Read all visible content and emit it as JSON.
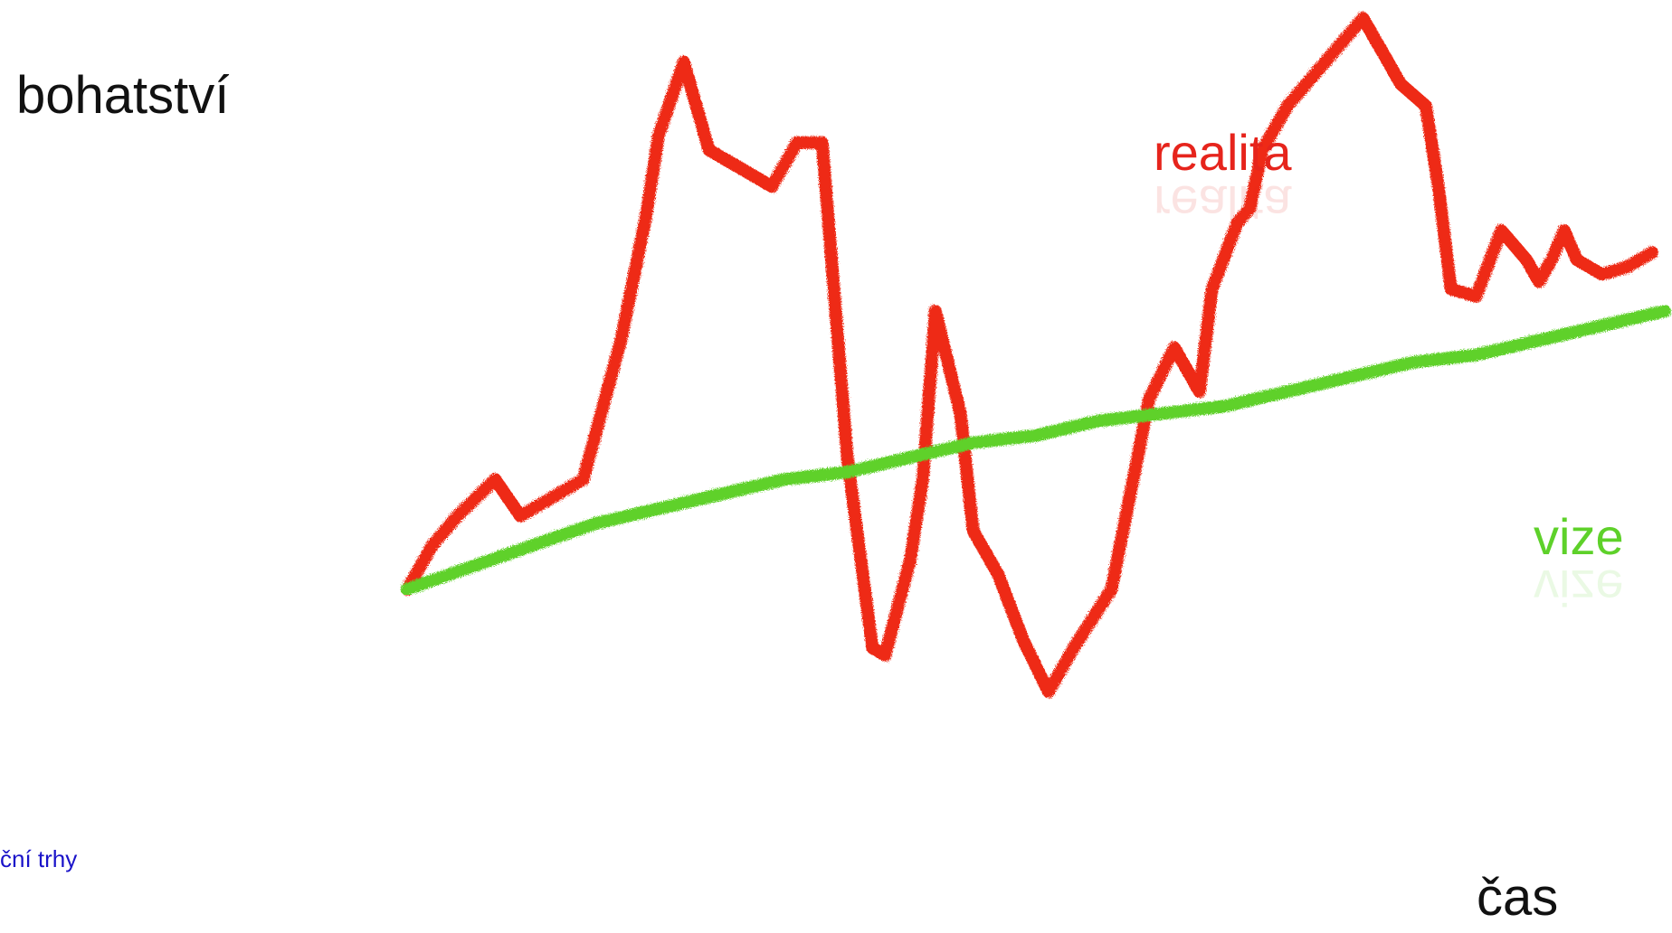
{
  "footer": {
    "link_text": "ční trhy"
  },
  "chart_data": {
    "type": "line",
    "ylabel": "bohatství",
    "xlabel": "čas",
    "x_ticks_visible": false,
    "y_ticks_visible": false,
    "grid": false,
    "xlim": [
      0,
      100
    ],
    "ylim": [
      0,
      100
    ],
    "series": [
      {
        "name": "realita",
        "color": "#ee2a18",
        "x": [
          0,
          2,
          4,
          7,
          9,
          12,
          14,
          17,
          19,
          20,
          22,
          24,
          27,
          29,
          31,
          33,
          35,
          37,
          38,
          40,
          41,
          42,
          44,
          45,
          47,
          49,
          51,
          53,
          56,
          59,
          61,
          63,
          64,
          66,
          67,
          68,
          70,
          73,
          76,
          79,
          81,
          82,
          83,
          85,
          87,
          89,
          90,
          91,
          92,
          93,
          95,
          97,
          99
        ],
        "y": [
          22,
          28,
          32,
          37,
          32,
          35,
          37,
          56,
          73,
          84,
          94,
          82,
          79,
          77,
          83,
          83,
          40,
          14,
          13,
          26,
          37,
          60,
          46,
          30,
          24,
          15,
          8,
          14,
          22,
          48,
          55,
          49,
          63,
          72,
          74,
          82,
          88,
          94,
          100,
          91,
          88,
          77,
          63,
          62,
          71,
          67,
          64,
          67,
          71,
          67,
          65,
          66,
          68
        ]
      },
      {
        "name": "vize",
        "color": "#5ed12a",
        "x": [
          0,
          5,
          10,
          15,
          20,
          25,
          30,
          35,
          40,
          45,
          50,
          55,
          60,
          65,
          70,
          75,
          80,
          85,
          90,
          95,
          100
        ],
        "y": [
          22,
          25,
          28,
          31,
          33,
          35,
          37,
          38,
          40,
          42,
          43,
          45,
          46,
          47,
          49,
          51,
          53,
          54,
          56,
          58,
          60
        ]
      }
    ],
    "annotations": [
      {
        "text": "realita",
        "color": "#e6241c",
        "near": "top-right"
      },
      {
        "text": "vize",
        "color": "#5ed12a",
        "near": "right"
      }
    ]
  }
}
